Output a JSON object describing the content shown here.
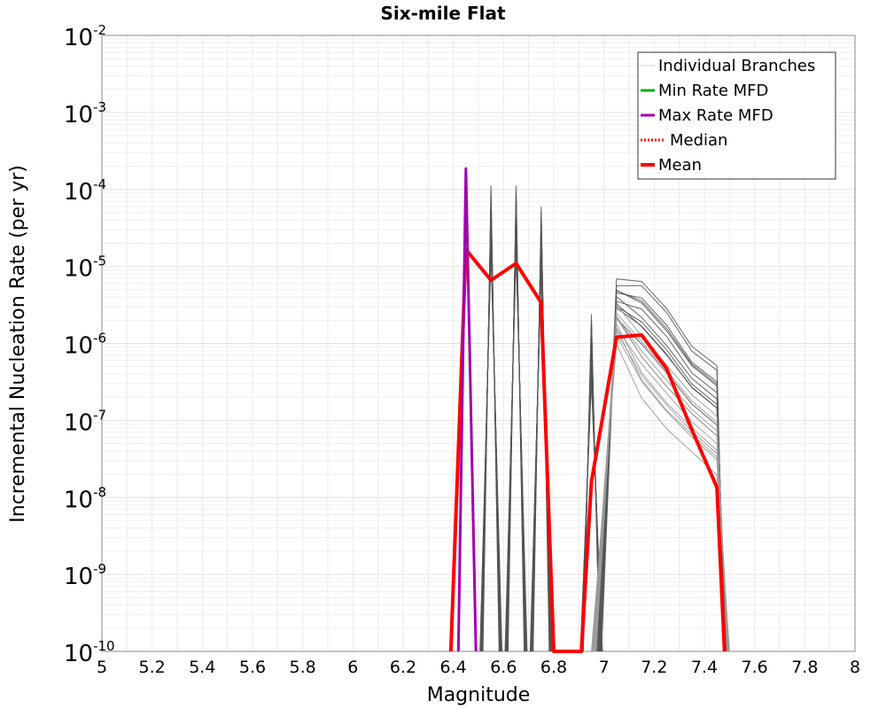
{
  "chart_data": {
    "type": "line",
    "title": "Six-mile Flat",
    "xlabel": "Magnitude",
    "ylabel": "Incremental Nucleation Rate (per yr)",
    "xlim": [
      5,
      8
    ],
    "ylim_log10": [
      -10,
      -2
    ],
    "y_scale": "log",
    "x_ticks": [
      "5",
      "5.2",
      "5.4",
      "5.6",
      "5.8",
      "6",
      "6.2",
      "6.4",
      "6.6",
      "6.8",
      "7",
      "7.2",
      "7.4",
      "7.6",
      "7.8",
      "8"
    ],
    "x_tick_values": [
      5,
      5.2,
      5.4,
      5.6,
      5.8,
      6,
      6.2,
      6.4,
      6.6,
      6.8,
      7,
      7.2,
      7.4,
      7.6,
      7.8,
      8
    ],
    "y_ticks": [
      {
        "base": "10",
        "exp": "-2",
        "log": -2
      },
      {
        "base": "10",
        "exp": "-3",
        "log": -3
      },
      {
        "base": "10",
        "exp": "-4",
        "log": -4
      },
      {
        "base": "10",
        "exp": "-5",
        "log": -5
      },
      {
        "base": "10",
        "exp": "-6",
        "log": -6
      },
      {
        "base": "10",
        "exp": "-7",
        "log": -7
      },
      {
        "base": "10",
        "exp": "-8",
        "log": -8
      },
      {
        "base": "10",
        "exp": "-9",
        "log": -9
      },
      {
        "base": "10",
        "exp": "-10",
        "log": -10
      }
    ],
    "grid": true,
    "legend_position": "top-right",
    "legend": [
      {
        "label": "Individual Branches",
        "color": "#d0d0d0",
        "style": "solid",
        "width": 1
      },
      {
        "label": "Min Rate MFD",
        "color": "#00b000",
        "style": "solid",
        "width": 3
      },
      {
        "label": "Max Rate MFD",
        "color": "#a000b0",
        "style": "solid",
        "width": 3
      },
      {
        "label": "Median",
        "color": "#ff0000",
        "style": "dotted",
        "width": 3
      },
      {
        "label": "Mean",
        "color": "#ff0000",
        "style": "solid",
        "width": 4
      }
    ],
    "series": [
      {
        "name": "Mean",
        "color": "#ff0000",
        "x": [
          6.39,
          6.45,
          6.55,
          6.65,
          6.75,
          6.8,
          6.91,
          6.95,
          7.05,
          7.15,
          7.25,
          7.35,
          7.45,
          7.48
        ],
        "log10_y": [
          -10.3,
          -4.78,
          -5.18,
          -4.96,
          -5.47,
          -10.3,
          -10.3,
          -7.8,
          -5.92,
          -5.89,
          -6.33,
          -7.12,
          -7.87,
          -10.3
        ]
      },
      {
        "name": "Max Rate MFD",
        "color": "#a000b0",
        "x": [
          6.42,
          6.45,
          6.49
        ],
        "log10_y": [
          -10.3,
          -3.73,
          -10.3
        ]
      },
      {
        "name": "Individual Branches (spikes)",
        "color": "#555555",
        "spikes": [
          {
            "x": 6.55,
            "log10_peak": -3.95
          },
          {
            "x": 6.65,
            "log10_peak": -3.95
          },
          {
            "x": 6.75,
            "log10_peak": -4.22
          },
          {
            "x": 6.95,
            "log10_peak": -5.62
          }
        ]
      },
      {
        "name": "Individual Branches (cluster)",
        "color": "#555555",
        "x": [
          7.05,
          7.15,
          7.25,
          7.35,
          7.45
        ],
        "log10_y_upper": [
          -5.25,
          -5.25,
          -5.6,
          -6.1,
          -6.35
        ],
        "log10_y_lower": [
          -5.9,
          -6.6,
          -7.0,
          -7.3,
          -7.6
        ]
      }
    ]
  }
}
